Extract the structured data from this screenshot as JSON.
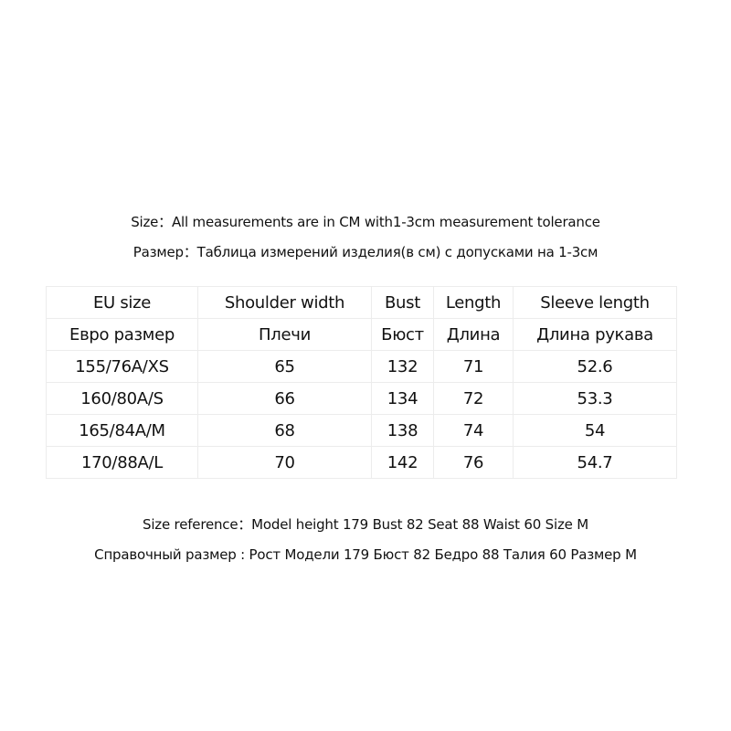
{
  "intro": {
    "line_en": "Size：All measurements are in CM with1-3cm measurement tolerance",
    "line_ru": "Размер：Таблица измерений изделия(в см) с допусками на 1-3см"
  },
  "table": {
    "header_en": [
      "EU size",
      "Shoulder width",
      "Bust",
      "Length",
      "Sleeve length"
    ],
    "header_ru": [
      "Евро размер",
      "Плечи",
      "Бюст",
      "Длина",
      "Длина рукава"
    ],
    "rows": [
      [
        "155/76A/XS",
        "65",
        "132",
        "71",
        "52.6"
      ],
      [
        "160/80A/S",
        "66",
        "134",
        "72",
        "53.3"
      ],
      [
        "165/84A/M",
        "68",
        "138",
        "74",
        "54"
      ],
      [
        "170/88A/L",
        "70",
        "142",
        "76",
        "54.7"
      ]
    ]
  },
  "reference": {
    "line_en": "Size reference：Model  height 179  Bust 82  Seat 88  Waist 60  Size M",
    "line_ru": "Справочный размер : Рост Модели 179 Бюст 82 Бедро 88 Талия 60 Размер M"
  }
}
